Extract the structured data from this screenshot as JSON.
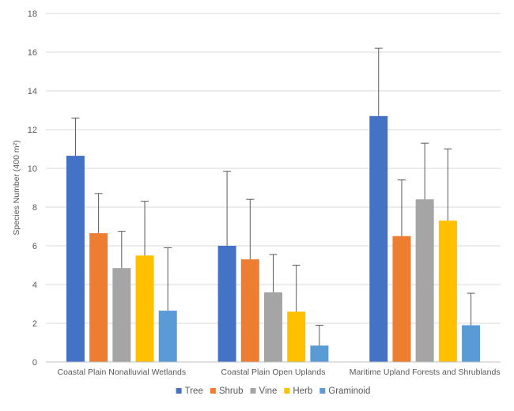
{
  "chart_data": {
    "type": "bar",
    "title": "",
    "xlabel": "",
    "ylabel": "Species Number (400 m²)",
    "ylim": [
      0,
      18
    ],
    "yticks": [
      0,
      2,
      4,
      6,
      8,
      10,
      12,
      14,
      16,
      18
    ],
    "grid": true,
    "legend_position": "bottom",
    "categories": [
      "Coastal Plain Nonalluvial Wetlands",
      "Coastal Plain Open Uplands",
      "Maritime Upland Forests and Shrublands"
    ],
    "series": [
      {
        "name": "Tree",
        "color": "#4472C4",
        "values": [
          10.65,
          6.0,
          12.7
        ],
        "error_upper": [
          12.6,
          9.85,
          16.2
        ]
      },
      {
        "name": "Shrub",
        "color": "#ED7D31",
        "values": [
          6.65,
          5.3,
          6.5
        ],
        "error_upper": [
          8.7,
          8.4,
          9.4
        ]
      },
      {
        "name": "Vine",
        "color": "#A5A5A5",
        "values": [
          4.85,
          3.6,
          8.4
        ],
        "error_upper": [
          6.75,
          5.55,
          11.3
        ]
      },
      {
        "name": "Herb",
        "color": "#FFC000",
        "values": [
          5.5,
          2.6,
          7.3
        ],
        "error_upper": [
          8.3,
          5.0,
          11.0
        ]
      },
      {
        "name": "Graminoid",
        "color": "#5B9BD5",
        "values": [
          2.65,
          0.85,
          1.9
        ],
        "error_upper": [
          5.9,
          1.9,
          3.55
        ]
      }
    ]
  }
}
